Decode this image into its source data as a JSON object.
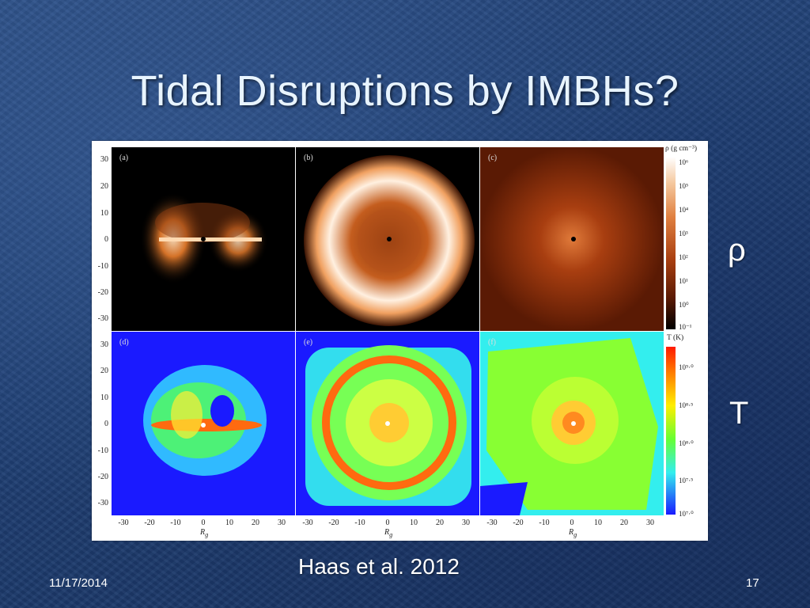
{
  "slide": {
    "title": "Tidal Disruptions by IMBHs?",
    "caption": "Haas et al. 2012",
    "date": "11/17/2014",
    "page_number": "17",
    "rho_label": "ρ",
    "t_label": "T"
  },
  "figure": {
    "panels": [
      "(a)",
      "(b)",
      "(c)",
      "(d)",
      "(e)",
      "(f)"
    ],
    "y_ticks": [
      "30",
      "20",
      "10",
      "0",
      "-10",
      "-20",
      "-30"
    ],
    "x_ticks": [
      "-30",
      "-20",
      "-10",
      "0",
      "10",
      "20",
      "30"
    ],
    "x_axis_label": "R",
    "x_axis_sub": "g",
    "density_colorbar": {
      "label": "ρ (g cm⁻³)",
      "ticks": [
        "10⁶",
        "10⁵",
        "10⁴",
        "10³",
        "10²",
        "10¹",
        "10⁰",
        "10⁻¹"
      ]
    },
    "temperature_colorbar": {
      "label": "T (K)",
      "ticks": [
        "10⁹·⁰",
        "10⁸·⁵",
        "10⁸·⁰",
        "10⁷·⁵",
        "10⁷·⁰"
      ]
    }
  },
  "colors": {
    "density_low": "#000000",
    "density_mid": "#c0501a",
    "density_high": "#ffffff",
    "temp_low": "#1a1aff",
    "temp_mid": "#66ff44",
    "temp_high": "#ff2a00"
  }
}
